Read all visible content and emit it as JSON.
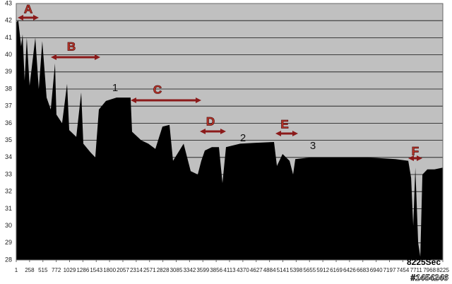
{
  "chart_data": {
    "type": "area",
    "color": "#000000",
    "background": "#c0c0c0",
    "grid": true,
    "xlim": [
      1,
      8225
    ],
    "ylim": [
      28,
      43
    ],
    "yticks": [
      28,
      29,
      30,
      31,
      32,
      33,
      34,
      35,
      36,
      37,
      38,
      39,
      40,
      41,
      42,
      43
    ],
    "xticks": [
      1,
      258,
      515,
      772,
      1029,
      1286,
      1543,
      1800,
      2057,
      2314,
      2571,
      2828,
      3085,
      3342,
      3599,
      3856,
      4113,
      4370,
      4627,
      4884,
      5141,
      5398,
      5655,
      5912,
      6169,
      6426,
      6683,
      6940,
      7197,
      7454,
      7711,
      7968,
      8225
    ],
    "x": [
      1,
      41,
      95,
      123,
      163,
      204,
      259,
      368,
      436,
      504,
      586,
      667,
      749,
      776,
      885,
      981,
      1022,
      1158,
      1253,
      1294,
      1430,
      1525,
      1594,
      1730,
      1934,
      2206,
      2234,
      2411,
      2547,
      2683,
      2820,
      2956,
      3024,
      3228,
      3364,
      3500,
      3568,
      3637,
      3773,
      3909,
      3977,
      4045,
      4317,
      4590,
      4971,
      5026,
      5135,
      5271,
      5339,
      5380,
      5680,
      6224,
      6769,
      7314,
      7559,
      7614,
      7654,
      7695,
      7750,
      7791,
      7832,
      7927,
      8064,
      8225
    ],
    "values": [
      41.9,
      42.0,
      40.5,
      41.2,
      38.5,
      41.0,
      38.2,
      41.0,
      38.0,
      40.8,
      37.5,
      36.8,
      39.5,
      36.5,
      36.0,
      38.3,
      35.6,
      35.2,
      37.8,
      34.8,
      34.3,
      34.0,
      36.8,
      37.3,
      37.5,
      37.5,
      35.5,
      35.0,
      34.8,
      34.5,
      35.8,
      35.9,
      33.8,
      34.8,
      33.2,
      33.0,
      33.8,
      34.4,
      34.6,
      34.6,
      32.5,
      34.6,
      34.8,
      34.85,
      34.9,
      33.5,
      34.2,
      33.8,
      33.0,
      33.9,
      34.0,
      34.0,
      34.0,
      33.9,
      33.8,
      32.8,
      30.0,
      33.4,
      29.0,
      28.2,
      33.0,
      33.3,
      33.3,
      33.4
    ],
    "annotations": [
      "A",
      "B",
      "1",
      "C",
      "D",
      "2",
      "E",
      "3",
      "F"
    ],
    "x_unit_label": "8225Sec",
    "watermark": "#1454246"
  }
}
